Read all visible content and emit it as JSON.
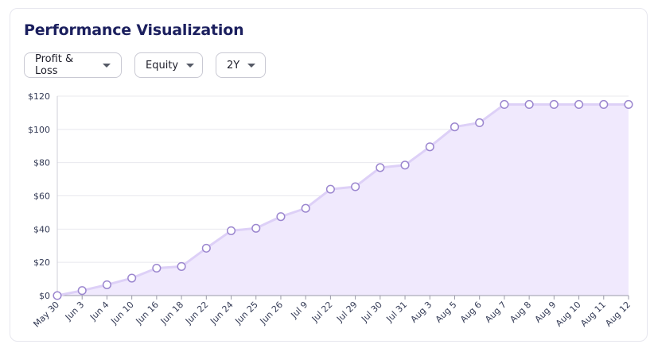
{
  "header": {
    "title": "Performance Visualization"
  },
  "filters": {
    "metric": "Profit & Loss",
    "type": "Equity",
    "period": "2Y"
  },
  "chart_data": {
    "type": "area",
    "x": [
      "May 30",
      "Jun 3",
      "Jun 4",
      "Jun 10",
      "Jun 16",
      "Jun 18",
      "Jun 22",
      "Jun 24",
      "Jun 25",
      "Jun 26",
      "Jul 9",
      "Jul 22",
      "Jul 29",
      "Jul 30",
      "Jul 31",
      "Aug 3",
      "Aug 5",
      "Aug 6",
      "Aug 7",
      "Aug 8",
      "Aug 9",
      "Aug 10",
      "Aug 11",
      "Aug 12"
    ],
    "series": [
      {
        "values": [
          0,
          3,
          6.5,
          10.5,
          16.5,
          17.5,
          28.5,
          39,
          40.5,
          47.5,
          52.5,
          64,
          65.5,
          77,
          78.5,
          89.5,
          101.5,
          104,
          115,
          115,
          115,
          115,
          115,
          115
        ]
      }
    ],
    "ylim": [
      0,
      120
    ],
    "yticks": [
      "$0",
      "$20",
      "$40",
      "$60",
      "$80",
      "$100",
      "$120"
    ],
    "grid": true,
    "colors": {
      "line": "#ddd0f7",
      "fill": "#f0e9fd",
      "marker_stroke": "#9b86cf",
      "marker_fill": "#ffffff"
    }
  }
}
